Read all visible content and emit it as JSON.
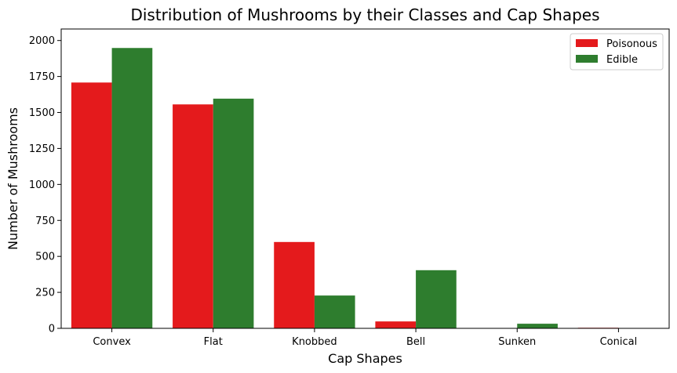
{
  "chart_data": {
    "type": "bar",
    "title": "Distribution of Mushrooms by their Classes and Cap Shapes",
    "xlabel": "Cap Shapes",
    "ylabel": "Number of Mushrooms",
    "categories": [
      "Convex",
      "Flat",
      "Knobbed",
      "Bell",
      "Sunken",
      "Conical"
    ],
    "series": [
      {
        "name": "Poisonous",
        "color": "#e41a1c",
        "values": [
          1708,
          1556,
          600,
          48,
          0,
          4
        ]
      },
      {
        "name": "Edible",
        "color": "#2e7d2e",
        "values": [
          1948,
          1596,
          228,
          404,
          32,
          0
        ]
      }
    ],
    "ylim": [
      0,
      2080
    ],
    "yticks": [
      0,
      250,
      500,
      750,
      1000,
      1250,
      1500,
      1750,
      2000
    ],
    "legend_position": "top-right",
    "grid": false
  }
}
